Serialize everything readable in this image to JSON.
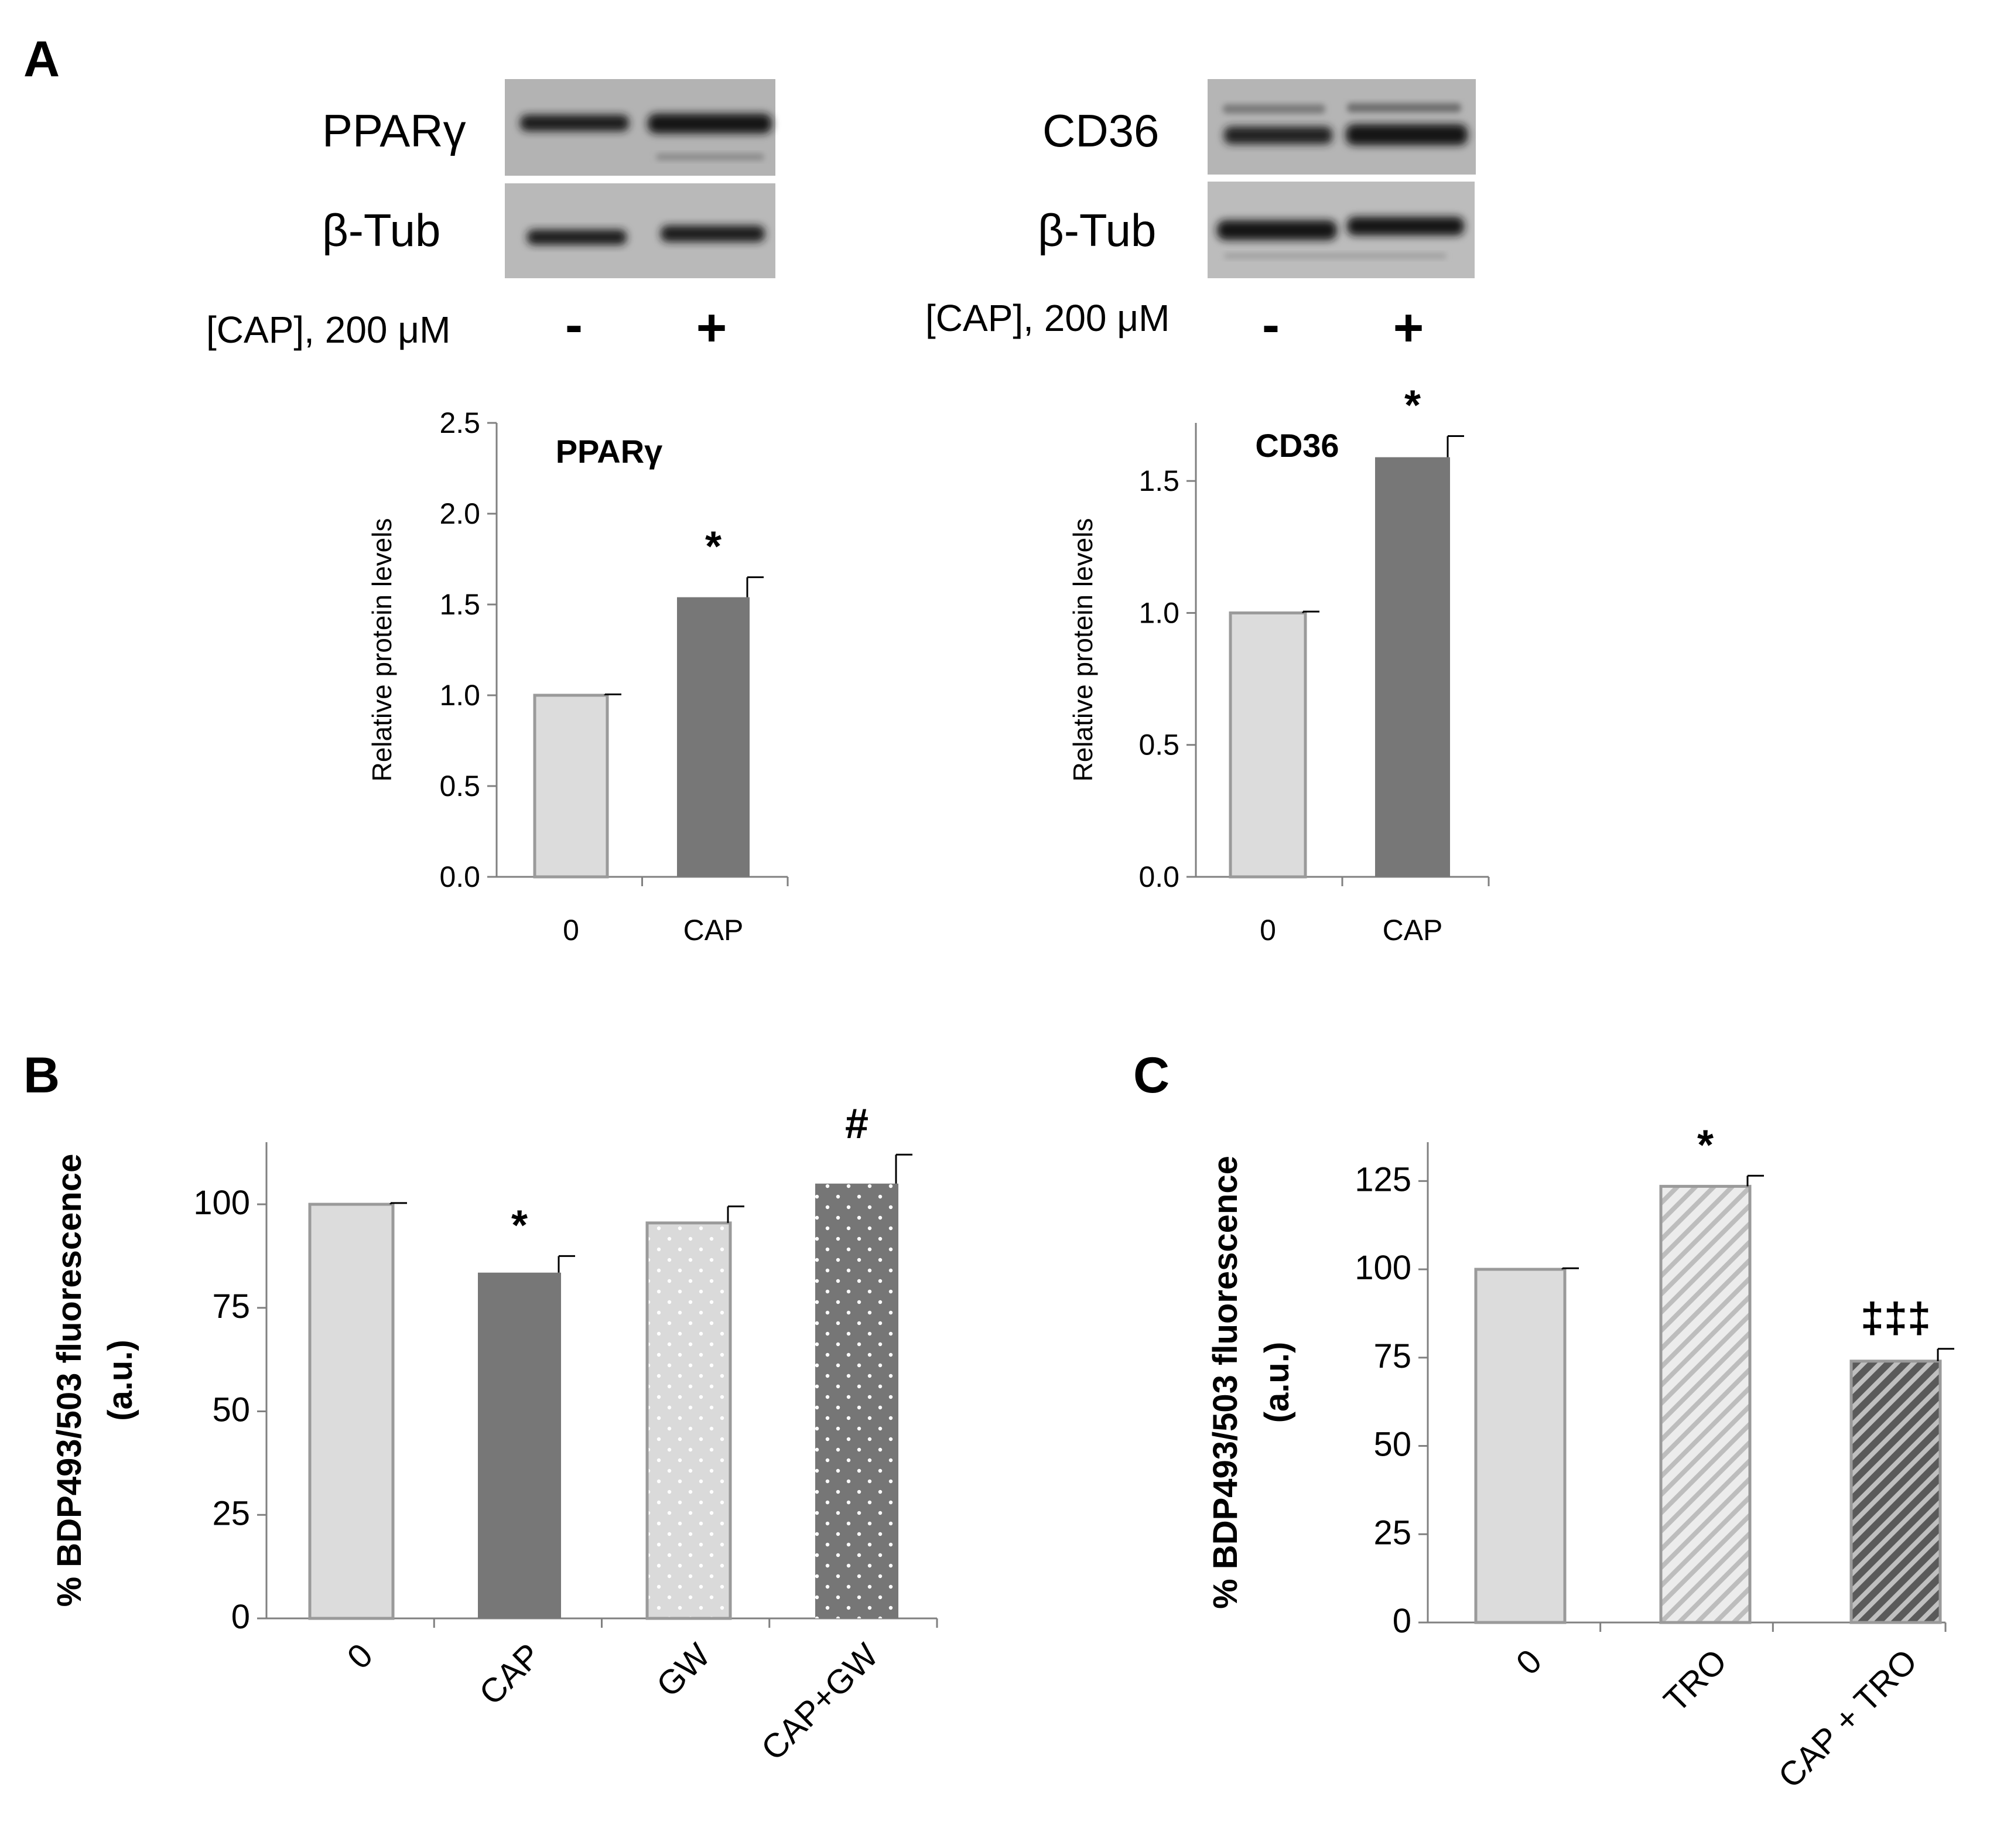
{
  "panels": {
    "a": "A",
    "b": "B",
    "c": "C"
  },
  "blots": [
    {
      "protein": "PPARγ",
      "loading": "β-Tub",
      "condition": "[CAP], 200 μM",
      "minus": "-",
      "plus": "+"
    },
    {
      "protein": "CD36",
      "loading": "β-Tub",
      "condition": "[CAP], 200 μM",
      "minus": "-",
      "plus": "+"
    }
  ],
  "colors": {
    "control": "#dcdcdc",
    "control_edge": "#9a9a9a",
    "cap": "#777777",
    "gw": "#dadada",
    "capgw": "#767676",
    "tro": "#d9d9d9",
    "captro": "#6c6c6c",
    "axis": "#808080"
  },
  "chart_data": [
    {
      "id": "A-PPARg",
      "type": "bar",
      "title": "PPARγ",
      "ylabel": "Relative protein levels",
      "xlabel": "",
      "categories": [
        "0",
        "CAP"
      ],
      "values": [
        1.0,
        1.54
      ],
      "errors": [
        0.005,
        0.11
      ],
      "annotations": [
        "",
        "*"
      ],
      "ylim": [
        0,
        2.5
      ],
      "yticks": [
        "0.0",
        "0.5",
        "1.0",
        "1.5",
        "2.0",
        "2.5"
      ],
      "grid": false
    },
    {
      "id": "A-CD36",
      "type": "bar",
      "title": "CD36",
      "ylabel": "Relative protein levels",
      "xlabel": "",
      "categories": [
        "0",
        "CAP"
      ],
      "values": [
        1.0,
        1.59
      ],
      "errors": [
        0.005,
        0.08
      ],
      "annotations": [
        "",
        "*"
      ],
      "ylim": [
        0,
        1.72
      ],
      "yticks": [
        "0.0",
        "0.5",
        "1.0",
        "1.5"
      ],
      "grid": false
    },
    {
      "id": "B",
      "type": "bar",
      "title": "",
      "ylabel": "% BDP493/503 fluorescence (a.u.)",
      "ylabel_lines": [
        "% BDP493/503 fluorescence",
        "(a.u.)"
      ],
      "xlabel": "",
      "categories": [
        "0",
        "CAP",
        "GW",
        "CAP+GW"
      ],
      "values": [
        100,
        83.5,
        95.5,
        105
      ],
      "errors": [
        0.3,
        4,
        4,
        7
      ],
      "annotations": [
        "",
        "*",
        "",
        "#"
      ],
      "ylim": [
        0,
        115
      ],
      "yticks": [
        "0",
        "25",
        "50",
        "75",
        "100"
      ],
      "grid": false
    },
    {
      "id": "C",
      "type": "bar",
      "title": "",
      "ylabel": "% BDP493/503 fluorescence (a.u.)",
      "ylabel_lines": [
        "% BDP493/503 fluorescence",
        "(a.u.)"
      ],
      "xlabel": "",
      "categories": [
        "0",
        "TRO",
        "CAP + TRO"
      ],
      "values": [
        100,
        123.5,
        74
      ],
      "errors": [
        0.3,
        3,
        3.5
      ],
      "annotations": [
        "",
        "*",
        "‡‡‡"
      ],
      "ylim": [
        0,
        136
      ],
      "yticks": [
        "0",
        "25",
        "50",
        "75",
        "100",
        "125"
      ],
      "grid": false
    }
  ]
}
